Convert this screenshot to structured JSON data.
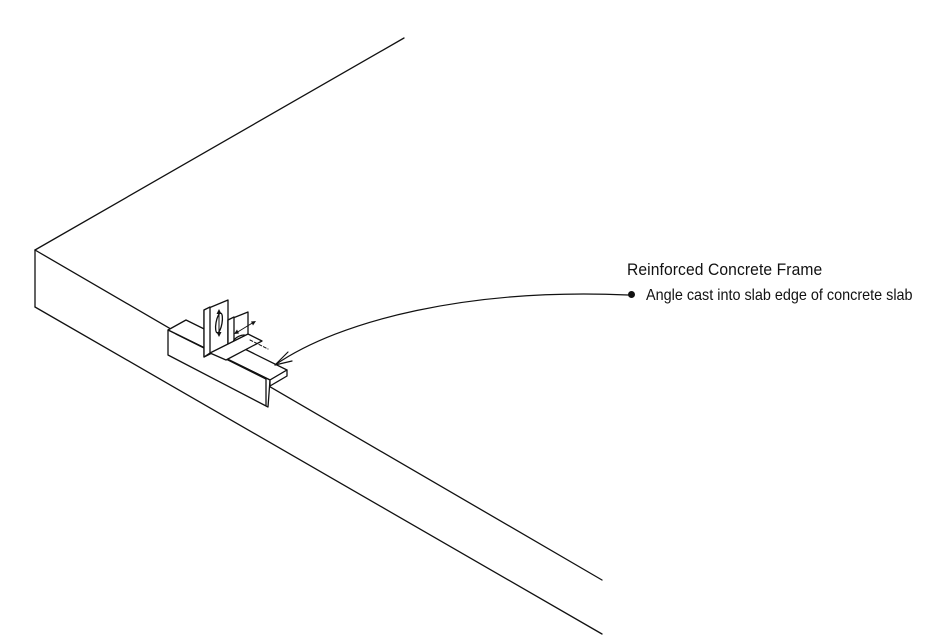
{
  "annotation": {
    "title": "Reinforced Concrete Frame",
    "items": [
      "Angle cast into slab edge of concrete slab"
    ]
  },
  "colors": {
    "line": "#111111",
    "background": "#ffffff"
  }
}
